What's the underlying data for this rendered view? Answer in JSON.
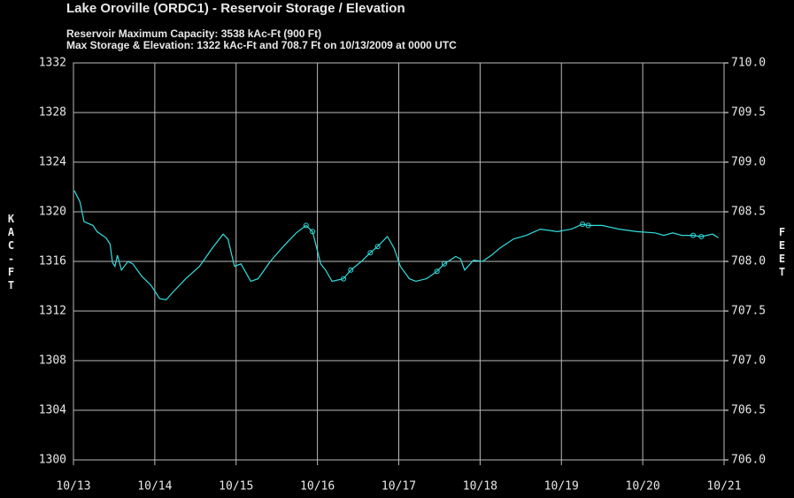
{
  "chart_data": {
    "type": "line",
    "title": "Lake Oroville (ORDC1) - Reservoir Storage / Elevation",
    "subtitles": [
      {
        "text": "Reservoir Maximum Capacity: 3538 kAc-Ft (900 Ft)",
        "color": "#ff0000"
      },
      {
        "text": "Max Storage & Elevation: 1322 kAc-Ft and 708.7 Ft on 10/13/2009 at 0000 UTC",
        "color": "#ffffff"
      }
    ],
    "y_label": "KAC-FT",
    "y2_label": "FEET",
    "xlim": [
      0,
      8
    ],
    "xticks": [
      {
        "value": 0,
        "label": "10/13"
      },
      {
        "value": 1,
        "label": "10/14"
      },
      {
        "value": 2,
        "label": "10/15"
      },
      {
        "value": 3,
        "label": "10/16"
      },
      {
        "value": 4,
        "label": "10/17"
      },
      {
        "value": 5,
        "label": "10/18"
      },
      {
        "value": 6,
        "label": "10/19"
      },
      {
        "value": 7,
        "label": "10/20"
      },
      {
        "value": 8,
        "label": "10/21"
      }
    ],
    "ylim": [
      1300,
      1332
    ],
    "yticks": [
      1300,
      1304,
      1308,
      1312,
      1316,
      1320,
      1324,
      1328,
      1332
    ],
    "y2lim": [
      706,
      710
    ],
    "y2ticks": [
      {
        "value": 706,
        "label": "706.0"
      },
      706.5,
      {
        "value": 707,
        "label": "707.0"
      },
      707.5,
      {
        "value": 708,
        "label": "708.0"
      },
      708.5,
      {
        "value": 709,
        "label": "709.0"
      },
      709.5,
      {
        "value": 710,
        "label": "710.0"
      }
    ],
    "grid": true,
    "series": [
      {
        "color": "#33dddd",
        "markers": false,
        "x": [
          0.01,
          0.08,
          0.13,
          0.24,
          0.29,
          0.4,
          0.45,
          0.48,
          0.51,
          0.54,
          0.59,
          0.67,
          0.73,
          0.84,
          0.95,
          1.06,
          1.14,
          1.22,
          1.38,
          1.55,
          1.71,
          1.84,
          1.9,
          1.98,
          2.06,
          2.18,
          2.27,
          2.42,
          2.58,
          2.74,
          2.86,
          2.94,
          3.04,
          3.1,
          3.18,
          3.32,
          3.41,
          3.54,
          3.65,
          3.74,
          3.86,
          3.94,
          4.02,
          4.13,
          4.21,
          4.34,
          4.47,
          4.56,
          4.7,
          4.76,
          4.81,
          4.92,
          5.03,
          5.14,
          5.25,
          5.41,
          5.57,
          5.74,
          5.95,
          6.12,
          6.26,
          6.33,
          6.5,
          6.71,
          6.93,
          7.15,
          7.26,
          7.37,
          7.48,
          7.62,
          7.72,
          7.86,
          7.93
        ],
        "values": [
          1321.7,
          1320.8,
          1319.2,
          1318.9,
          1318.4,
          1317.9,
          1317.4,
          1315.9,
          1315.6,
          1316.5,
          1315.3,
          1316.0,
          1315.8,
          1314.8,
          1314.1,
          1313.0,
          1312.9,
          1313.5,
          1314.6,
          1315.6,
          1317.1,
          1318.2,
          1317.8,
          1315.6,
          1315.8,
          1314.4,
          1314.6,
          1316.0,
          1317.2,
          1318.3,
          1318.9,
          1318.4,
          1315.8,
          1315.3,
          1314.4,
          1314.6,
          1315.3,
          1316.0,
          1316.7,
          1317.2,
          1318.0,
          1317.1,
          1315.6,
          1314.6,
          1314.4,
          1314.6,
          1315.2,
          1315.8,
          1316.4,
          1316.2,
          1315.3,
          1316.1,
          1316.0,
          1316.5,
          1317.1,
          1317.8,
          1318.1,
          1318.6,
          1318.4,
          1318.6,
          1319.0,
          1318.9,
          1318.9,
          1318.6,
          1318.4,
          1318.3,
          1318.1,
          1318.3,
          1318.1,
          1318.1,
          1318.0,
          1318.2,
          1317.9
        ]
      },
      {
        "color": "#33dddd",
        "markers": true,
        "x": [
          2.86,
          2.94,
          3.32,
          3.41,
          3.65,
          3.74,
          4.47,
          4.56,
          6.26,
          6.33,
          7.62,
          7.72
        ],
        "values": [
          1318.9,
          1318.4,
          1314.6,
          1315.3,
          1316.7,
          1317.2,
          1315.2,
          1315.8,
          1319.0,
          1318.9,
          1318.1,
          1318.0
        ]
      }
    ]
  }
}
